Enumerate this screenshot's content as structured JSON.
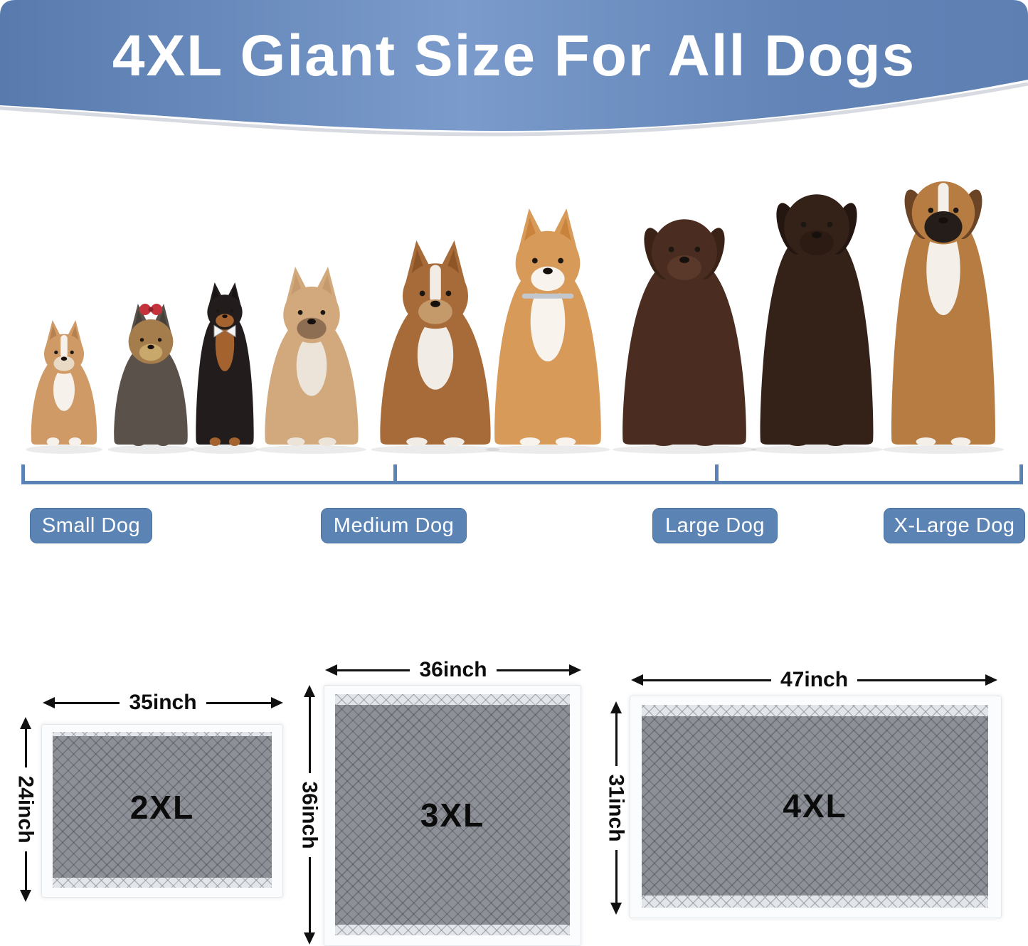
{
  "header": {
    "title": "4XL Giant Size For All Dogs"
  },
  "size_groups": [
    {
      "label": "Small Dog"
    },
    {
      "label": "Medium Dog"
    },
    {
      "label": "Large Dog"
    },
    {
      "label": "X-Large Dog"
    }
  ],
  "dogs": [
    {
      "name": "chihuahua",
      "group": "small",
      "ear": "point",
      "body": "#cf9a66",
      "chest": "#f6f1ea",
      "muzzle": "#e9dac5",
      "earInner": "#b5814e",
      "blaze": "#f6f1ea"
    },
    {
      "name": "yorkshire-terrier",
      "group": "small",
      "ear": "point",
      "body": "#5a524a",
      "head": "#a57c4b",
      "chest": null,
      "muzzle": "#c9a86c",
      "earInner": "#46403a",
      "bow": "#c4333b"
    },
    {
      "name": "miniature-pinscher",
      "group": "small",
      "ear": "point",
      "body": "#221d1c",
      "chest": "#a4622f",
      "muzzle": "#a4622f",
      "earInner": "#171312",
      "bowtie": "#f4f4f4"
    },
    {
      "name": "french-bulldog",
      "group": "small",
      "ear": "point",
      "body": "#d2a97d",
      "chest": "#ece4d8",
      "muzzle": "#8d6e52",
      "earInner": "#c59a6d"
    },
    {
      "name": "bull-terrier",
      "group": "medium",
      "ear": "point",
      "body": "#a76a39",
      "chest": "#f1ece6",
      "muzzle": "#c49a6b",
      "earInner": "#8e5527",
      "blaze": "#f1ece6"
    },
    {
      "name": "shiba-inu",
      "group": "medium",
      "ear": "point",
      "body": "#d89a58",
      "chest": "#f8f3ec",
      "muzzle": "#f8f3ec",
      "earInner": "#c9833d",
      "collar": "#c2c7cd"
    },
    {
      "name": "chocolate-labrador",
      "group": "large",
      "ear": "drop",
      "body": "#4a2d20",
      "chest": null,
      "muzzle": "#5a392a",
      "earInner": "#3a2217"
    },
    {
      "name": "flat-coated-retriever",
      "group": "large",
      "ear": "drop",
      "body": "#342118",
      "chest": null,
      "muzzle": "#2c1b12",
      "earInner": "#241610"
    },
    {
      "name": "boxer",
      "group": "x-large",
      "ear": "drop",
      "body": "#b67c42",
      "chest": "#f4efe8",
      "muzzle": "#241d19",
      "earInner": "#6b4426",
      "mask": "#241d19",
      "blaze": "#f4efe8"
    }
  ],
  "pads": [
    {
      "label": "2XL",
      "width_label": "35inch",
      "height_label": "24inch"
    },
    {
      "label": "3XL",
      "width_label": "36inch",
      "height_label": "36inch"
    },
    {
      "label": "4XL",
      "width_label": "47inch",
      "height_label": "31inch"
    }
  ],
  "colors": {
    "banner_left": "#587aad",
    "banner_mid": "#7a9bcb",
    "banner_right": "#5d7fb2",
    "title_text": "#ffffff",
    "button_fill": "#5b84b5",
    "button_border": "#49719f",
    "bracket": "#5b82b4",
    "pad_gray": "#8d9197",
    "pad_gray_line": "#6e7277",
    "pad_edge_white": "#fbfcfd",
    "arrow_black": "#101010",
    "pad_label_text": "#0b0b0b"
  }
}
